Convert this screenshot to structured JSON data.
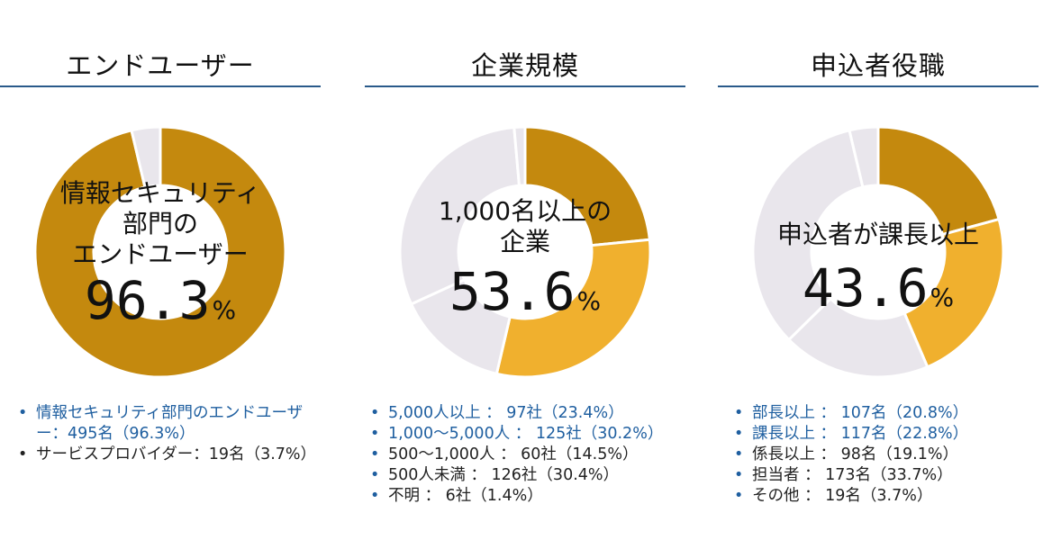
{
  "colors": {
    "dark_gold": "#c4890e",
    "light_gold": "#f0b02e",
    "gray": "#e9e6ec",
    "rule_blue": "#2a5a8a",
    "legend_blue": "#1f5fa0"
  },
  "panels": [
    {
      "title": "エンドユーザー",
      "center_text": "情報セキュリティ\n部門の\nエンドユーザー",
      "center_pct": "96.3",
      "pct_sign": "%",
      "legend": [
        {
          "text": "情報セキュリティ部門のエンドユーザー：495名（96.3%）",
          "highlight": true
        },
        {
          "text": "サービスプロバイダー：19名（3.7%）",
          "highlight": false
        }
      ]
    },
    {
      "title": "企業規模",
      "center_text": "1,000名以上の\n企業",
      "center_pct": "53.6",
      "pct_sign": "%",
      "legend": [
        {
          "text": "5,000人以上 ： 97社（23.4%）",
          "highlight": true
        },
        {
          "text": "1,000〜5,000人 ： 125社（30.2%）",
          "highlight": true
        },
        {
          "text": "500〜1,000人 ： 60社（14.5%）",
          "highlight": false
        },
        {
          "text": "500人未満 ： 126社（30.4%）",
          "highlight": false
        },
        {
          "text": "不明 ： 6社（1.4%）",
          "highlight": false
        }
      ]
    },
    {
      "title": "申込者役職",
      "center_text": "申込者が課長以上",
      "center_pct": "43.6",
      "pct_sign": "%",
      "legend": [
        {
          "text": "部長以上 ： 107名（20.8%）",
          "highlight": true
        },
        {
          "text": "課長以上 ： 117名（22.8%）",
          "highlight": true
        },
        {
          "text": "係長以上 ： 98名（19.1%）",
          "highlight": false
        },
        {
          "text": "担当者 ： 173名（33.7%）",
          "highlight": false
        },
        {
          "text": "その他 ： 19名（3.7%）",
          "highlight": false
        }
      ]
    }
  ],
  "chart_data": [
    {
      "type": "pie",
      "title": "エンドユーザー",
      "categories": [
        "情報セキュリティ部門のエンドユーザー",
        "サービスプロバイダー"
      ],
      "values": [
        96.3,
        3.7
      ],
      "counts": [
        495,
        19
      ],
      "colors": [
        "#c4890e",
        "#e9e6ec"
      ]
    },
    {
      "type": "pie",
      "title": "企業規模",
      "categories": [
        "5,000人以上",
        "1,000〜5,000人",
        "500〜1,000人",
        "500人未満",
        "不明"
      ],
      "values": [
        23.4,
        30.2,
        14.5,
        30.4,
        1.4
      ],
      "counts": [
        97,
        125,
        60,
        126,
        6
      ],
      "colors": [
        "#c4890e",
        "#f0b02e",
        "#e9e6ec",
        "#e9e6ec",
        "#e9e6ec"
      ]
    },
    {
      "type": "pie",
      "title": "申込者役職",
      "categories": [
        "部長以上",
        "課長以上",
        "係長以上",
        "担当者",
        "その他"
      ],
      "values": [
        20.8,
        22.8,
        19.1,
        33.7,
        3.7
      ],
      "counts": [
        107,
        117,
        98,
        173,
        19
      ],
      "colors": [
        "#c4890e",
        "#f0b02e",
        "#e9e6ec",
        "#e9e6ec",
        "#e9e6ec"
      ]
    }
  ]
}
